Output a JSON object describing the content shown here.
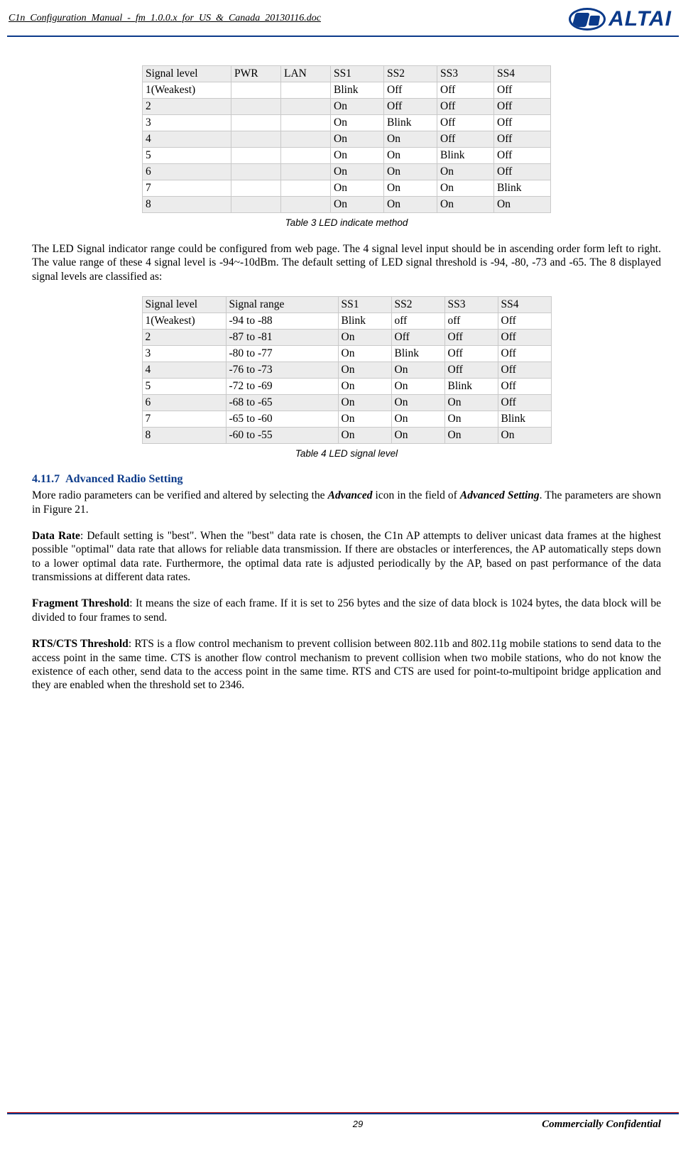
{
  "header": {
    "doc_title": "C1n_Configuration_Manual_-_fm_1.0.0.x_for_US_&_Canada_20130116.doc",
    "logo_text": "ALTAI"
  },
  "table3": {
    "headers": [
      "Signal level",
      "PWR",
      "LAN",
      "SS1",
      "SS2",
      "SS3",
      "SS4"
    ],
    "rows": [
      [
        "1(Weakest)",
        "",
        "",
        "Blink",
        "Off",
        "Off",
        "Off"
      ],
      [
        "2",
        "",
        "",
        "On",
        "Off",
        "Off",
        "Off"
      ],
      [
        "3",
        "",
        "",
        "On",
        "Blink",
        "Off",
        "Off"
      ],
      [
        "4",
        "",
        "",
        "On",
        "On",
        "Off",
        "Off"
      ],
      [
        "5",
        "",
        "",
        "On",
        "On",
        "Blink",
        "Off"
      ],
      [
        "6",
        "",
        "",
        "On",
        "On",
        "On",
        "Off"
      ],
      [
        "7",
        "",
        "",
        "On",
        "On",
        "On",
        "Blink"
      ],
      [
        "8",
        "",
        "",
        "On",
        "On",
        "On",
        "On"
      ]
    ],
    "caption": "Table 3     LED indicate method"
  },
  "para1": "The LED Signal indicator range could be configured from web page. The 4 signal level input should be in ascending order form left to right. The value range of these 4 signal level is -94~-10dBm. The default setting of LED signal threshold is -94, -80, -73 and -65. The 8 displayed signal levels are classified as:",
  "table4": {
    "headers": [
      "Signal level",
      "Signal range",
      "SS1",
      "SS2",
      "SS3",
      "SS4"
    ],
    "rows": [
      [
        "1(Weakest)",
        "-94 to -88",
        "Blink",
        "off",
        "off",
        "Off"
      ],
      [
        "2",
        "-87 to -81",
        "On",
        "Off",
        "Off",
        "Off"
      ],
      [
        "3",
        "-80 to -77",
        "On",
        "Blink",
        "Off",
        "Off"
      ],
      [
        "4",
        "-76 to -73",
        "On",
        "On",
        "Off",
        "Off"
      ],
      [
        "5",
        "-72 to -69",
        "On",
        "On",
        "Blink",
        "Off"
      ],
      [
        "6",
        "-68 to -65",
        "On",
        "On",
        "On",
        "Off"
      ],
      [
        "7",
        "-65 to -60",
        "On",
        "On",
        "On",
        "Blink"
      ],
      [
        "8",
        "-60 to -55",
        "On",
        "On",
        "On",
        "On"
      ]
    ],
    "caption": "Table 4     LED signal level"
  },
  "section": {
    "number": "4.11.7",
    "title": "Advanced Radio Setting"
  },
  "para2_pre": "More radio parameters can be verified and altered by selecting the ",
  "para2_adv": "Advanced",
  "para2_mid": " icon in the field of ",
  "para2_as": "Advanced Setting",
  "para2_post": ". The parameters are shown in Figure 21.",
  "para3_label": "Data Rate",
  "para3_text": ": Default setting is \"best\". When the \"best\" data rate is chosen, the C1n AP attempts to deliver unicast data frames at the highest possible \"optimal\" data rate that allows for reliable data transmission. If there are obstacles or interferences, the AP automatically steps down to a lower optimal data rate. Furthermore, the optimal data rate is adjusted periodically by the AP, based on past performance of the data transmissions at different data rates.",
  "para4_label": "Fragment Threshold",
  "para4_text": ": It means the size of each frame. If it is set to 256 bytes and the size of data block is 1024 bytes, the data block will be divided to four frames to send.",
  "para5_label": "RTS/CTS Threshold",
  "para5_text": ": RTS is a flow control mechanism to prevent collision between 802.11b and 802.11g mobile stations to send data to the access point in the same time. CTS is another flow control mechanism to prevent collision when two mobile stations, who do not know the existence of each other, send data to the access point in the same time. RTS and CTS are used for point-to-multipoint bridge application and they are enabled when the threshold set to 2346.",
  "footer": {
    "page": "29",
    "confidential": "Commercially Confidential"
  }
}
